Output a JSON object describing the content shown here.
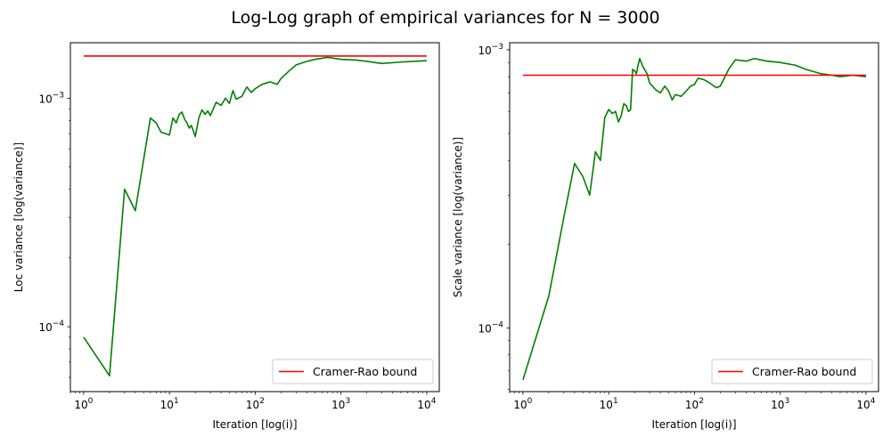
{
  "suptitle": "Log-Log graph of empirical variances for N = 3000",
  "chart_data": [
    {
      "type": "line",
      "xscale": "log",
      "yscale": "log",
      "xlabel": "Iteration [log(i)]",
      "ylabel": "Loc variance [log(variance)]",
      "xlim": [
        0.7,
        14000
      ],
      "ylim": [
        5.2e-05,
        0.00175
      ],
      "xticks": [
        {
          "v": 1,
          "base": "10",
          "exp": "0"
        },
        {
          "v": 10,
          "base": "10",
          "exp": "1"
        },
        {
          "v": 100,
          "base": "10",
          "exp": "2"
        },
        {
          "v": 1000,
          "base": "10",
          "exp": "3"
        },
        {
          "v": 10000,
          "base": "10",
          "exp": "4"
        }
      ],
      "yticks": [
        {
          "v": 0.0001,
          "base": "10",
          "exp": "−4"
        },
        {
          "v": 0.001,
          "base": "10",
          "exp": "−3"
        }
      ],
      "legend": {
        "position": "lower right",
        "entries": [
          "Cramer-Rao bound"
        ]
      },
      "grid": false,
      "series": [
        {
          "color": "#008000",
          "x": [
            1,
            2,
            3,
            4,
            6,
            7,
            8,
            9,
            10,
            11,
            12,
            13,
            14,
            15,
            16,
            17,
            18,
            19,
            20,
            22,
            24,
            26,
            28,
            30,
            35,
            40,
            45,
            50,
            55,
            60,
            70,
            80,
            90,
            100,
            120,
            150,
            180,
            200,
            250,
            300,
            400,
            500,
            700,
            1000,
            1500,
            2000,
            3000,
            5000,
            7000,
            10000
          ],
          "y": [
            9e-05,
            6.1e-05,
            0.0004,
            0.000322,
            0.00082,
            0.00078,
            0.00071,
            0.0007,
            0.00069,
            0.00082,
            0.00078,
            0.00085,
            0.00087,
            0.00081,
            0.00078,
            0.00074,
            0.00076,
            0.00072,
            0.00068,
            0.00082,
            0.00089,
            0.00085,
            0.00088,
            0.00084,
            0.00096,
            0.00093,
            0.001,
            0.00095,
            0.00108,
            0.00099,
            0.00102,
            0.00112,
            0.00106,
            0.0011,
            0.00115,
            0.00118,
            0.00115,
            0.00122,
            0.00132,
            0.0014,
            0.00145,
            0.00148,
            0.00151,
            0.00148,
            0.00147,
            0.00145,
            0.00142,
            0.00144,
            0.00145,
            0.00146
          ]
        },
        {
          "name": "Cramer-Rao bound",
          "color": "#ff0000",
          "x": [
            1,
            10000
          ],
          "y": [
            0.00153,
            0.00153
          ]
        }
      ]
    },
    {
      "type": "line",
      "xscale": "log",
      "yscale": "log",
      "xlabel": "Iteration [log(i)]",
      "ylabel": "Scale variance [log(variance)]",
      "xlim": [
        0.7,
        14000
      ],
      "ylim": [
        5.9e-05,
        0.00106
      ],
      "xticks": [
        {
          "v": 1,
          "base": "10",
          "exp": "0"
        },
        {
          "v": 10,
          "base": "10",
          "exp": "1"
        },
        {
          "v": 100,
          "base": "10",
          "exp": "2"
        },
        {
          "v": 1000,
          "base": "10",
          "exp": "3"
        },
        {
          "v": 10000,
          "base": "10",
          "exp": "4"
        }
      ],
      "yticks": [
        {
          "v": 0.0001,
          "base": "10",
          "exp": "−4"
        },
        {
          "v": 0.001,
          "base": "10",
          "exp": "−3"
        }
      ],
      "legend": {
        "position": "lower right",
        "entries": [
          "Cramer-Rao bound"
        ]
      },
      "grid": false,
      "series": [
        {
          "color": "#008000",
          "x": [
            1,
            2,
            3,
            4,
            5,
            6,
            7,
            8,
            9,
            10,
            11,
            12,
            13,
            14,
            15,
            16,
            17,
            18,
            19,
            20,
            21,
            22,
            23,
            25,
            28,
            30,
            35,
            40,
            45,
            50,
            55,
            60,
            70,
            80,
            90,
            100,
            110,
            130,
            150,
            180,
            200,
            250,
            300,
            400,
            500,
            700,
            1000,
            1500,
            2000,
            3000,
            4000,
            5000,
            7000,
            10000
          ],
          "y": [
            6.5e-05,
            0.00013,
            0.00025,
            0.00039,
            0.00035,
            0.0003,
            0.00043,
            0.0004,
            0.00057,
            0.00061,
            0.00059,
            0.0006,
            0.00055,
            0.00058,
            0.00064,
            0.00063,
            0.0006,
            0.00061,
            0.00085,
            0.00084,
            0.00082,
            0.00088,
            0.00093,
            0.00087,
            0.00082,
            0.00076,
            0.00072,
            0.0007,
            0.00074,
            0.00071,
            0.00066,
            0.00069,
            0.00068,
            0.00071,
            0.00074,
            0.00075,
            0.00079,
            0.00078,
            0.00076,
            0.00073,
            0.00074,
            0.00085,
            0.00092,
            0.00091,
            0.00093,
            0.00091,
            0.0009,
            0.00088,
            0.00085,
            0.00082,
            0.00081,
            0.0008,
            0.00081,
            0.0008
          ]
        },
        {
          "name": "Cramer-Rao bound",
          "color": "#ff0000",
          "x": [
            1,
            10000
          ],
          "y": [
            0.00081,
            0.00081
          ]
        }
      ]
    }
  ]
}
